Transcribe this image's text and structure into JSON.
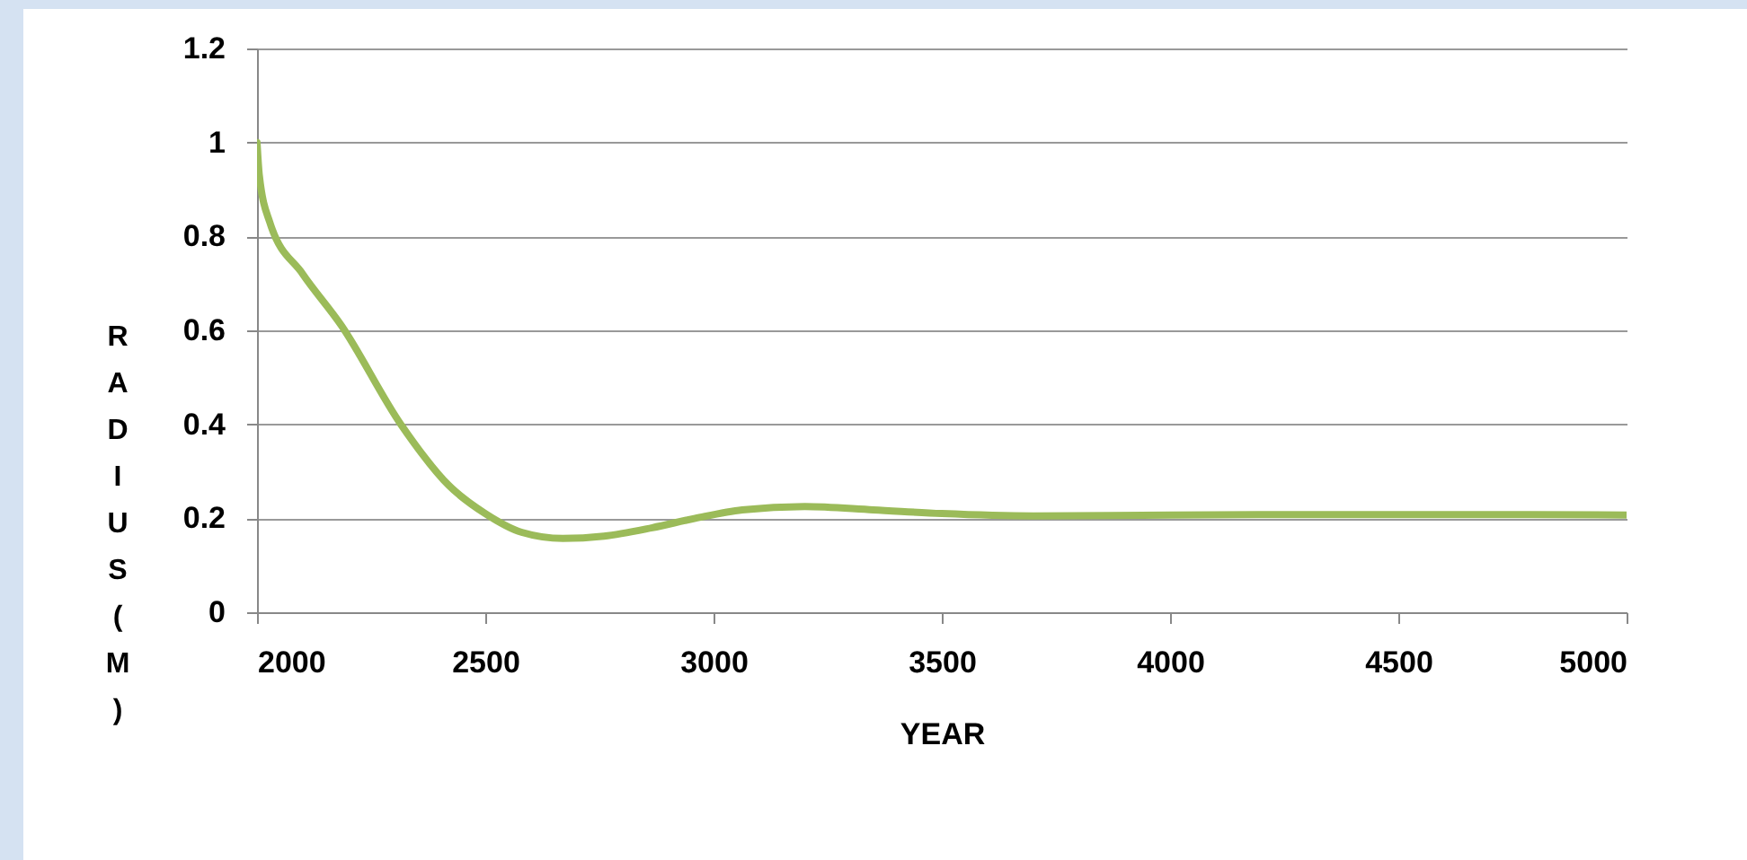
{
  "chart_data": {
    "type": "line",
    "xlabel": "YEAR",
    "ylabel": "RADIUS (M)",
    "x": [
      2000,
      2005,
      2028,
      2100,
      2185,
      2315,
      2420,
      2500,
      2580,
      2670,
      2760,
      2866,
      2960,
      3063,
      3200,
      3350,
      3500,
      3700,
      4000,
      4500,
      5000
    ],
    "series": [
      {
        "color": "#9bbb59",
        "values": [
          1.0,
          0.93,
          0.83,
          0.72,
          0.61,
          0.4,
          0.27,
          0.21,
          0.17,
          0.157,
          0.162,
          0.18,
          0.2,
          0.218,
          0.225,
          0.218,
          0.21,
          0.205,
          0.207,
          0.208,
          0.207
        ]
      }
    ],
    "xlim": [
      2000,
      5000
    ],
    "xticks": [
      2000,
      2500,
      3000,
      3500,
      4000,
      4500,
      5000
    ],
    "ylim": [
      0,
      1.2
    ],
    "yticks": [
      0,
      0.2,
      0.4,
      0.6,
      0.8,
      1,
      1.2
    ],
    "grid": "y",
    "legend": false,
    "marker": "none",
    "line_style": "solid"
  }
}
